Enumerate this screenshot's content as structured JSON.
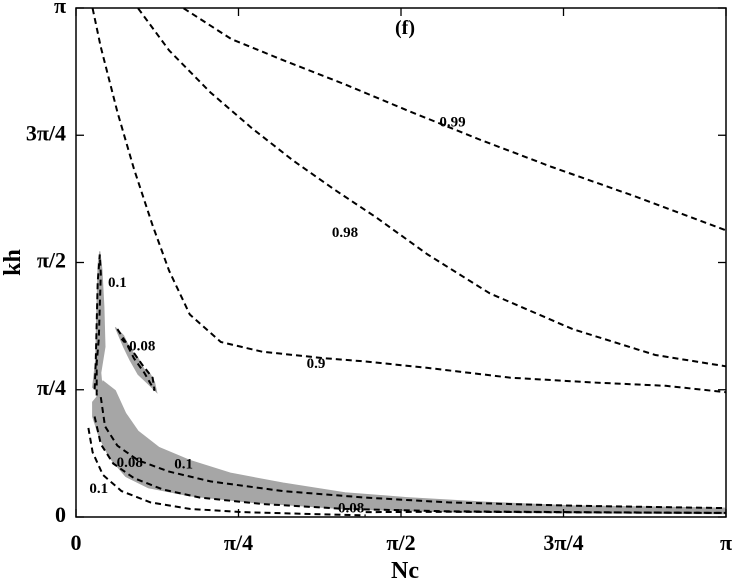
{
  "chart_data": {
    "type": "contour",
    "panel_label": "(f)",
    "xlabel": "Nc",
    "ylabel": "kh",
    "xlim": [
      0,
      3.14159
    ],
    "ylim": [
      0,
      3.14159
    ],
    "x_ticks": [
      {
        "value": 0,
        "label": "0"
      },
      {
        "value": 0.7854,
        "label": "π/4"
      },
      {
        "value": 1.5708,
        "label": "π/2"
      },
      {
        "value": 2.3562,
        "label": "3π/4"
      },
      {
        "value": 3.1416,
        "label": "π"
      }
    ],
    "y_ticks": [
      {
        "value": 0,
        "label": "0"
      },
      {
        "value": 0.7854,
        "label": "π/4"
      },
      {
        "value": 1.5708,
        "label": "π/2"
      },
      {
        "value": 2.3562,
        "label": "3π/4"
      },
      {
        "value": 3.1416,
        "label": "π"
      }
    ],
    "shaded_color": "#a6a6a6",
    "shaded_regions": [
      {
        "name": "gray-band",
        "points": [
          [
            0.13,
            0.84
          ],
          [
            0.19,
            0.78
          ],
          [
            0.24,
            0.64
          ],
          [
            0.3,
            0.53
          ],
          [
            0.4,
            0.43
          ],
          [
            0.55,
            0.35
          ],
          [
            0.75,
            0.27
          ],
          [
            1.0,
            0.21
          ],
          [
            1.3,
            0.15
          ],
          [
            1.6,
            0.12
          ],
          [
            2.0,
            0.09
          ],
          [
            2.4,
            0.07
          ],
          [
            3.14,
            0.055
          ],
          [
            3.14,
            0.02
          ],
          [
            2.4,
            0.025
          ],
          [
            1.85,
            0.03
          ],
          [
            1.3,
            0.05
          ],
          [
            0.85,
            0.09
          ],
          [
            0.55,
            0.13
          ],
          [
            0.35,
            0.18
          ],
          [
            0.24,
            0.25
          ],
          [
            0.16,
            0.37
          ],
          [
            0.11,
            0.5
          ],
          [
            0.08,
            0.62
          ],
          [
            0.08,
            0.71
          ],
          [
            0.1,
            0.74
          ]
        ]
      },
      {
        "name": "gray-spike",
        "points": [
          [
            0.12,
            0.89
          ],
          [
            0.14,
            1.05
          ],
          [
            0.135,
            1.3
          ],
          [
            0.125,
            1.53
          ],
          [
            0.115,
            1.64
          ],
          [
            0.107,
            1.56
          ],
          [
            0.1,
            1.25
          ],
          [
            0.095,
            0.97
          ],
          [
            0.08,
            0.8
          ],
          [
            0.13,
            0.75
          ]
        ]
      },
      {
        "name": "gray-lobe",
        "points": [
          [
            0.19,
            1.17
          ],
          [
            0.23,
            1.05
          ],
          [
            0.26,
            0.97
          ],
          [
            0.3,
            0.88
          ],
          [
            0.35,
            0.82
          ],
          [
            0.39,
            0.77
          ],
          [
            0.38,
            0.83
          ],
          [
            0.36,
            0.88
          ],
          [
            0.33,
            0.91
          ],
          [
            0.3,
            0.98
          ],
          [
            0.26,
            1.04
          ],
          [
            0.23,
            1.12
          ]
        ]
      }
    ],
    "contours": [
      {
        "label": "0.99",
        "points": [
          [
            0.52,
            3.14
          ],
          [
            0.75,
            2.95
          ],
          [
            1.0,
            2.82
          ],
          [
            1.3,
            2.67
          ],
          [
            1.6,
            2.51
          ],
          [
            1.95,
            2.33
          ],
          [
            2.3,
            2.16
          ],
          [
            2.7,
            1.98
          ],
          [
            3.14,
            1.77
          ]
        ],
        "label_at": [
          1.82,
          2.43
        ]
      },
      {
        "label": "0.98",
        "points": [
          [
            0.3,
            3.14
          ],
          [
            0.45,
            2.88
          ],
          [
            0.65,
            2.62
          ],
          [
            0.85,
            2.4
          ],
          [
            1.05,
            2.2
          ],
          [
            1.25,
            2.02
          ],
          [
            1.45,
            1.85
          ],
          [
            1.7,
            1.62
          ],
          [
            2.0,
            1.38
          ],
          [
            2.4,
            1.16
          ],
          [
            2.8,
            1.0
          ],
          [
            3.14,
            0.93
          ]
        ],
        "label_at": [
          1.3,
          1.75
        ]
      },
      {
        "label": "0.9",
        "points": [
          [
            0.08,
            3.14
          ],
          [
            0.12,
            2.9
          ],
          [
            0.2,
            2.5
          ],
          [
            0.28,
            2.15
          ],
          [
            0.37,
            1.8
          ],
          [
            0.45,
            1.52
          ],
          [
            0.55,
            1.25
          ],
          [
            0.7,
            1.08
          ],
          [
            0.9,
            1.02
          ],
          [
            1.2,
            0.98
          ],
          [
            1.4,
            0.96
          ],
          [
            1.7,
            0.92
          ],
          [
            2.1,
            0.86
          ],
          [
            2.5,
            0.83
          ],
          [
            2.85,
            0.81
          ],
          [
            3.14,
            0.77
          ]
        ],
        "label_at": [
          1.16,
          0.94
        ]
      },
      {
        "label": "0.1",
        "points": [
          [
            0.1,
            0.75
          ],
          [
            0.1,
            0.95
          ],
          [
            0.11,
            1.1
          ],
          [
            0.115,
            1.3
          ],
          [
            0.12,
            1.5
          ],
          [
            0.115,
            1.62
          ],
          [
            0.105,
            1.45
          ],
          [
            0.1,
            1.2
          ],
          [
            0.095,
            0.95
          ],
          [
            0.09,
            0.78
          ]
        ],
        "label_at": [
          0.2,
          1.44
        ]
      },
      {
        "label": "0.08",
        "points": [
          [
            0.2,
            1.16
          ],
          [
            0.24,
            1.08
          ],
          [
            0.28,
            0.98
          ],
          [
            0.33,
            0.89
          ],
          [
            0.38,
            0.78
          ],
          [
            0.37,
            0.86
          ],
          [
            0.32,
            0.94
          ],
          [
            0.27,
            1.03
          ],
          [
            0.22,
            1.1
          ]
        ],
        "label_at": [
          0.32,
          1.05
        ]
      },
      {
        "label": "0.1",
        "points": [
          [
            0.12,
            0.74
          ],
          [
            0.14,
            0.56
          ],
          [
            0.2,
            0.44
          ],
          [
            0.3,
            0.35
          ],
          [
            0.45,
            0.28
          ],
          [
            0.65,
            0.22
          ],
          [
            1.0,
            0.16
          ],
          [
            1.4,
            0.12
          ],
          [
            1.8,
            0.09
          ],
          [
            2.4,
            0.07
          ],
          [
            3.14,
            0.055
          ]
        ],
        "label_at": [
          0.52,
          0.32
        ]
      },
      {
        "label": "0.08",
        "points": [
          [
            0.09,
            0.62
          ],
          [
            0.12,
            0.45
          ],
          [
            0.18,
            0.33
          ],
          [
            0.28,
            0.24
          ],
          [
            0.42,
            0.17
          ],
          [
            0.6,
            0.12
          ],
          [
            0.9,
            0.08
          ],
          [
            1.3,
            0.05
          ],
          [
            1.8,
            0.035
          ],
          [
            2.4,
            0.03
          ],
          [
            3.14,
            0.025
          ]
        ],
        "label_at": [
          0.26,
          0.33
        ]
      },
      {
        "label": "0.1",
        "points": [
          [
            0.06,
            0.55
          ],
          [
            0.08,
            0.4
          ],
          [
            0.13,
            0.26
          ],
          [
            0.22,
            0.16
          ],
          [
            0.36,
            0.09
          ],
          [
            0.55,
            0.05
          ],
          [
            0.8,
            0.03
          ],
          [
            1.1,
            0.02
          ],
          [
            1.4,
            0.01
          ]
        ],
        "label_at": [
          0.11,
          0.17
        ]
      },
      {
        "label": "0.08",
        "points": [
          [
            1.4,
            0.03
          ],
          [
            1.8,
            0.032
          ],
          [
            2.2,
            0.03
          ],
          [
            2.6,
            0.028
          ],
          [
            3.14,
            0.025
          ]
        ],
        "label_at": [
          1.33,
          0.05
        ]
      }
    ]
  }
}
